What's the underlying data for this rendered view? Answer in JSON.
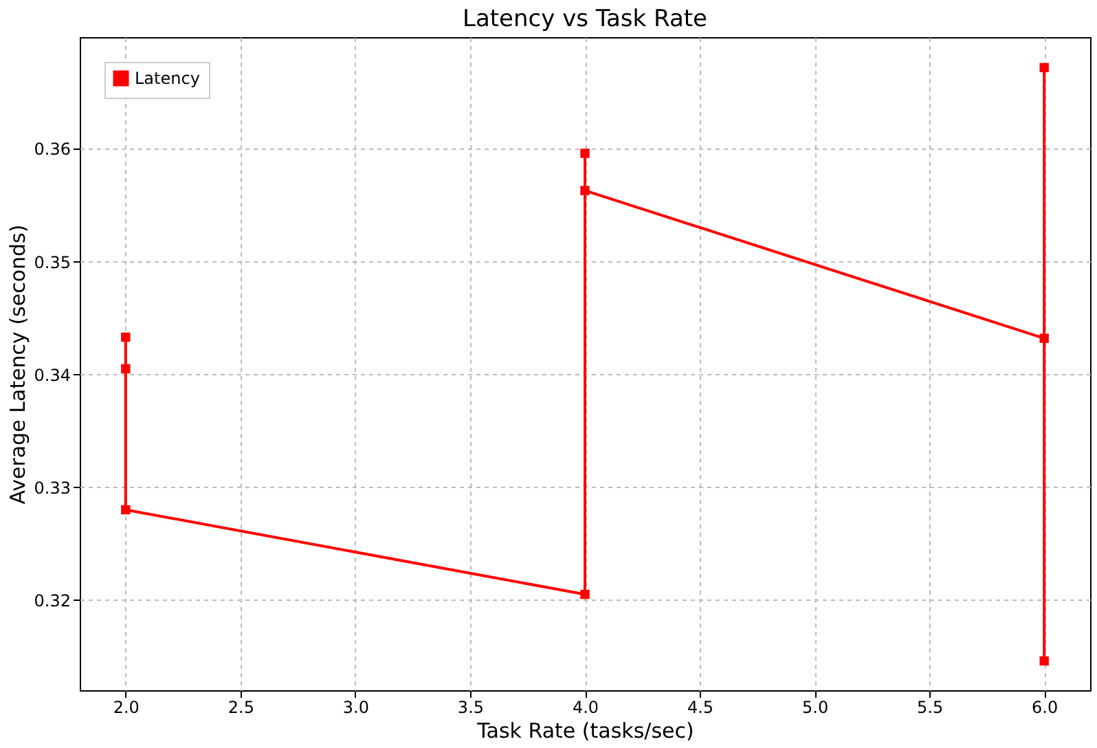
{
  "chart_data": {
    "type": "line",
    "title": "Latency vs Task Rate",
    "xlabel": "Task Rate (tasks/sec)",
    "ylabel": "Average Latency (seconds)",
    "x": [
      2.0,
      2.0,
      2.0,
      4.0,
      4.0,
      4.0,
      6.0,
      6.0,
      6.0
    ],
    "series": [
      {
        "name": "Latency",
        "color": "#ff0000",
        "values": [
          0.3433,
          0.3405,
          0.328,
          0.3205,
          0.3596,
          0.3563,
          0.3432,
          0.3672,
          0.3146
        ]
      }
    ],
    "xlim": [
      1.8,
      6.2
    ],
    "ylim": [
      0.312,
      0.3699
    ],
    "xticks": [
      {
        "value": 2.0,
        "label": "2.0"
      },
      {
        "value": 2.5,
        "label": "2.5"
      },
      {
        "value": 3.0,
        "label": "3.0"
      },
      {
        "value": 3.5,
        "label": "3.5"
      },
      {
        "value": 4.0,
        "label": "4.0"
      },
      {
        "value": 4.5,
        "label": "4.5"
      },
      {
        "value": 5.0,
        "label": "5.0"
      },
      {
        "value": 5.5,
        "label": "5.5"
      },
      {
        "value": 6.0,
        "label": "6.0"
      }
    ],
    "yticks": [
      0.32,
      0.33,
      0.34,
      0.35,
      0.36
    ],
    "grid": true,
    "legend": "top left",
    "marker": "square",
    "line_style": "solid"
  }
}
